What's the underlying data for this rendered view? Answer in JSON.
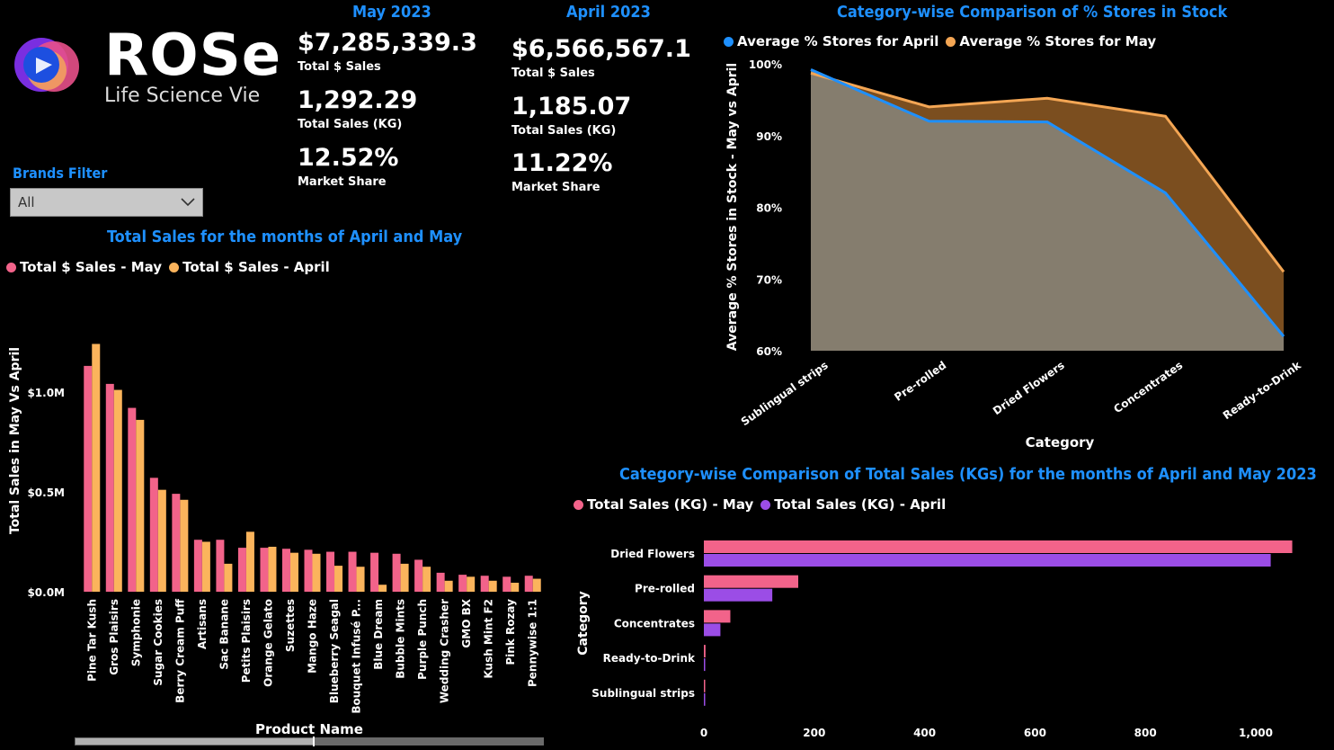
{
  "logo": {
    "brand": "ROSe",
    "tagline": "Life Science Vie"
  },
  "colors": {
    "may": "#f2638a",
    "april_bar": "#fbb45c",
    "april_line": "#1e90ff",
    "may_line": "#f4a654",
    "kg_april": "#9b4de6",
    "title": "#1e90ff"
  },
  "kpi_may": {
    "heading": "May 2023",
    "total_sales": "$7,285,339.3",
    "total_sales_label": "Total $ Sales",
    "total_kg": "1,292.29",
    "total_kg_label": "Total Sales (KG)",
    "market_share": "12.52%",
    "market_share_label": "Market Share"
  },
  "kpi_april": {
    "heading": "April 2023",
    "total_sales": "$6,566,567.1",
    "total_sales_label": "Total $ Sales",
    "total_kg": "1,185.07",
    "total_kg_label": "Total Sales (KG)",
    "market_share": "11.22%",
    "market_share_label": "Market Share"
  },
  "filter": {
    "label": "Brands Filter",
    "value": "All"
  },
  "chart_data": [
    {
      "type": "bar",
      "title": "Total Sales for the months of April and May",
      "xlabel": "Product Name",
      "ylabel": "Total Sales in May Vs April",
      "ylim": [
        0,
        1350000
      ],
      "yticks": [
        {
          "value": 0,
          "label": "$0.0M"
        },
        {
          "value": 500000,
          "label": "$0.5M"
        },
        {
          "value": 1000000,
          "label": "$1.0M"
        }
      ],
      "legend": "top-left",
      "categories": [
        "Pine Tar Kush",
        "Gros Plaisirs",
        "Symphonie",
        "Sugar Cookies",
        "Berry Cream Puff",
        "Artisans",
        "Sac Banane",
        "Petits Plaisirs",
        "Orange Gelato",
        "Suzettes",
        "Mango Haze",
        "Blueberry Seagal",
        "Bouquet Infusé P...",
        "Blue Dream",
        "Bubble Mints",
        "Purple Punch",
        "Wedding Crasher",
        "GMO BX",
        "Kush Mint F2",
        "Pink Rozay",
        "Pennywise 1:1"
      ],
      "series": [
        {
          "name": "Total $ Sales - May",
          "values": [
            1130000,
            1040000,
            920000,
            570000,
            490000,
            260000,
            260000,
            220000,
            220000,
            215000,
            210000,
            200000,
            200000,
            195000,
            190000,
            160000,
            95000,
            85000,
            80000,
            75000,
            80000
          ]
        },
        {
          "name": "Total $ Sales - April",
          "values": [
            1240000,
            1010000,
            860000,
            510000,
            460000,
            250000,
            140000,
            300000,
            225000,
            195000,
            190000,
            130000,
            125000,
            35000,
            140000,
            125000,
            55000,
            75000,
            55000,
            45000,
            65000
          ]
        }
      ]
    },
    {
      "type": "area",
      "title": "Category-wise Comparison of % Stores in Stock",
      "xlabel": "Category",
      "ylabel": "Average % Stores in Stock - May vs April",
      "ylim": [
        60,
        100
      ],
      "yticks": [
        {
          "value": 60,
          "label": "60%"
        },
        {
          "value": 70,
          "label": "70%"
        },
        {
          "value": 80,
          "label": "80%"
        },
        {
          "value": 90,
          "label": "90%"
        },
        {
          "value": 100,
          "label": "100%"
        }
      ],
      "legend": "top-left",
      "categories": [
        "Sublingual strips",
        "Pre-rolled",
        "Dried Flowers",
        "Concentrates",
        "Ready-to-Drink"
      ],
      "series": [
        {
          "name": "Average % Stores for April",
          "values": [
            99.2,
            92.0,
            91.9,
            82.0,
            62.0
          ]
        },
        {
          "name": "Average % Stores for May",
          "values": [
            98.7,
            94.0,
            95.2,
            92.7,
            71.0
          ]
        }
      ]
    },
    {
      "type": "bar",
      "orientation": "horizontal",
      "title": "Category-wise Comparison of Total Sales (KGs) for the months of April and May 2023",
      "xlabel": "",
      "ylabel": "Category",
      "xlim": [
        0,
        1070
      ],
      "xticks": [
        {
          "value": 0,
          "label": "0"
        },
        {
          "value": 200,
          "label": "200"
        },
        {
          "value": 400,
          "label": "400"
        },
        {
          "value": 600,
          "label": "600"
        },
        {
          "value": 800,
          "label": "800"
        },
        {
          "value": 1000,
          "label": "1,000"
        }
      ],
      "legend": "top-left",
      "categories": [
        "Dried Flowers",
        "Pre-rolled",
        "Concentrates",
        "Ready-to-Drink",
        "Sublingual strips"
      ],
      "series": [
        {
          "name": "Total Sales (KG) - May",
          "values": [
            1066,
            171,
            48,
            3,
            2
          ]
        },
        {
          "name": "Total Sales (KG) - April",
          "values": [
            1027,
            124,
            30,
            2,
            1
          ]
        }
      ]
    }
  ]
}
